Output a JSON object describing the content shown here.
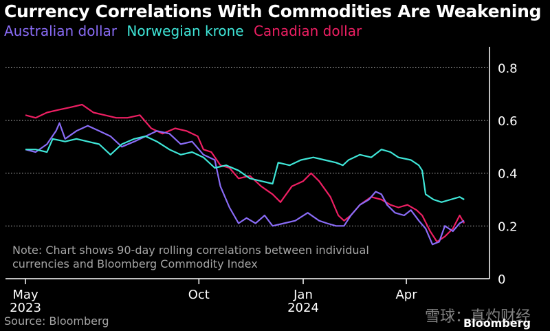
{
  "chart_data": {
    "type": "line",
    "title": "Currency Correlations With Commodities Are Weakening",
    "note": "Note: Chart shows 90-day rolling correlations between individual currencies and Bloomberg Commodity Index",
    "source": "Source: Bloomberg",
    "ylim": [
      0,
      0.9
    ],
    "y_ticks": [
      "0.8",
      "0.6",
      "0.4",
      "0.2",
      "0"
    ],
    "x_tick_labels": [
      {
        "line1": "May",
        "line2": "2023",
        "x": "2023-05-01"
      },
      {
        "line1": "Oct",
        "line2": "",
        "x": "2023-10-01"
      },
      {
        "line1": "Jan",
        "line2": "2024",
        "x": "2024-01-01"
      },
      {
        "line1": "Apr",
        "line2": "",
        "x": "2024-04-01"
      }
    ],
    "grid": "horizontal dotted",
    "legend": "top-left",
    "x_range": [
      "2023-05-01",
      "2024-05-31"
    ],
    "series": [
      {
        "name": "Australian dollar",
        "color": "#8a6cf7",
        "points": [
          [
            "2023-05-01",
            0.49
          ],
          [
            "2023-05-10",
            0.48
          ],
          [
            "2023-05-20",
            0.51
          ],
          [
            "2023-05-28",
            0.56
          ],
          [
            "2023-05-31",
            0.59
          ],
          [
            "2023-06-05",
            0.53
          ],
          [
            "2023-06-15",
            0.56
          ],
          [
            "2023-06-25",
            0.58
          ],
          [
            "2023-07-05",
            0.56
          ],
          [
            "2023-07-15",
            0.54
          ],
          [
            "2023-07-25",
            0.5
          ],
          [
            "2023-08-05",
            0.52
          ],
          [
            "2023-08-15",
            0.54
          ],
          [
            "2023-08-25",
            0.56
          ],
          [
            "2023-09-05",
            0.55
          ],
          [
            "2023-09-15",
            0.51
          ],
          [
            "2023-09-25",
            0.52
          ],
          [
            "2023-10-05",
            0.47
          ],
          [
            "2023-10-15",
            0.45
          ],
          [
            "2023-10-20",
            0.35
          ],
          [
            "2023-10-28",
            0.27
          ],
          [
            "2023-11-05",
            0.21
          ],
          [
            "2023-11-12",
            0.23
          ],
          [
            "2023-11-20",
            0.21
          ],
          [
            "2023-11-28",
            0.24
          ],
          [
            "2023-12-05",
            0.2
          ],
          [
            "2023-12-15",
            0.21
          ],
          [
            "2023-12-25",
            0.22
          ],
          [
            "2024-01-05",
            0.25
          ],
          [
            "2024-01-15",
            0.22
          ],
          [
            "2024-01-22",
            0.21
          ],
          [
            "2024-01-30",
            0.2
          ],
          [
            "2024-02-06",
            0.2
          ],
          [
            "2024-02-12",
            0.24
          ],
          [
            "2024-02-20",
            0.28
          ],
          [
            "2024-02-28",
            0.3
          ],
          [
            "2024-03-05",
            0.33
          ],
          [
            "2024-03-10",
            0.32
          ],
          [
            "2024-03-15",
            0.28
          ],
          [
            "2024-03-22",
            0.25
          ],
          [
            "2024-03-30",
            0.24
          ],
          [
            "2024-04-05",
            0.26
          ],
          [
            "2024-04-12",
            0.22
          ],
          [
            "2024-04-18",
            0.19
          ],
          [
            "2024-04-24",
            0.13
          ],
          [
            "2024-04-30",
            0.14
          ],
          [
            "2024-05-05",
            0.2
          ],
          [
            "2024-05-12",
            0.18
          ],
          [
            "2024-05-18",
            0.21
          ],
          [
            "2024-05-22",
            0.22
          ]
        ]
      },
      {
        "name": "Norwegian krone",
        "color": "#3fe6d8",
        "points": [
          [
            "2023-05-01",
            0.49
          ],
          [
            "2023-05-10",
            0.49
          ],
          [
            "2023-05-20",
            0.48
          ],
          [
            "2023-05-25",
            0.53
          ],
          [
            "2023-06-05",
            0.52
          ],
          [
            "2023-06-15",
            0.53
          ],
          [
            "2023-06-25",
            0.52
          ],
          [
            "2023-07-05",
            0.51
          ],
          [
            "2023-07-15",
            0.47
          ],
          [
            "2023-07-25",
            0.51
          ],
          [
            "2023-08-05",
            0.53
          ],
          [
            "2023-08-15",
            0.54
          ],
          [
            "2023-08-25",
            0.52
          ],
          [
            "2023-09-05",
            0.49
          ],
          [
            "2023-09-15",
            0.47
          ],
          [
            "2023-09-25",
            0.48
          ],
          [
            "2023-10-05",
            0.46
          ],
          [
            "2023-10-15",
            0.42
          ],
          [
            "2023-10-25",
            0.43
          ],
          [
            "2023-11-05",
            0.41
          ],
          [
            "2023-11-15",
            0.38
          ],
          [
            "2023-11-25",
            0.37
          ],
          [
            "2023-12-05",
            0.36
          ],
          [
            "2023-12-10",
            0.44
          ],
          [
            "2023-12-20",
            0.43
          ],
          [
            "2023-12-30",
            0.45
          ],
          [
            "2024-01-10",
            0.46
          ],
          [
            "2024-01-20",
            0.45
          ],
          [
            "2024-01-30",
            0.44
          ],
          [
            "2024-02-05",
            0.43
          ],
          [
            "2024-02-10",
            0.45
          ],
          [
            "2024-02-20",
            0.47
          ],
          [
            "2024-03-01",
            0.46
          ],
          [
            "2024-03-10",
            0.49
          ],
          [
            "2024-03-18",
            0.48
          ],
          [
            "2024-03-25",
            0.46
          ],
          [
            "2024-04-05",
            0.45
          ],
          [
            "2024-04-12",
            0.43
          ],
          [
            "2024-04-15",
            0.41
          ],
          [
            "2024-04-18",
            0.32
          ],
          [
            "2024-04-25",
            0.3
          ],
          [
            "2024-05-02",
            0.29
          ],
          [
            "2024-05-10",
            0.3
          ],
          [
            "2024-05-18",
            0.31
          ],
          [
            "2024-05-22",
            0.3
          ]
        ]
      },
      {
        "name": "Canadian dollar",
        "color": "#ee1f63",
        "points": [
          [
            "2023-05-01",
            0.62
          ],
          [
            "2023-05-10",
            0.61
          ],
          [
            "2023-05-20",
            0.63
          ],
          [
            "2023-05-30",
            0.64
          ],
          [
            "2023-06-10",
            0.65
          ],
          [
            "2023-06-20",
            0.66
          ],
          [
            "2023-06-30",
            0.63
          ],
          [
            "2023-07-10",
            0.62
          ],
          [
            "2023-07-20",
            0.61
          ],
          [
            "2023-07-30",
            0.61
          ],
          [
            "2023-08-10",
            0.62
          ],
          [
            "2023-08-20",
            0.57
          ],
          [
            "2023-08-30",
            0.55
          ],
          [
            "2023-09-10",
            0.57
          ],
          [
            "2023-09-20",
            0.56
          ],
          [
            "2023-09-30",
            0.54
          ],
          [
            "2023-10-05",
            0.49
          ],
          [
            "2023-10-12",
            0.48
          ],
          [
            "2023-10-20",
            0.43
          ],
          [
            "2023-10-28",
            0.42
          ],
          [
            "2023-11-05",
            0.38
          ],
          [
            "2023-11-15",
            0.39
          ],
          [
            "2023-11-25",
            0.35
          ],
          [
            "2023-12-05",
            0.32
          ],
          [
            "2023-12-12",
            0.29
          ],
          [
            "2023-12-22",
            0.35
          ],
          [
            "2024-01-01",
            0.37
          ],
          [
            "2024-01-08",
            0.4
          ],
          [
            "2024-01-15",
            0.37
          ],
          [
            "2024-01-25",
            0.31
          ],
          [
            "2024-02-01",
            0.24
          ],
          [
            "2024-02-06",
            0.22
          ],
          [
            "2024-02-12",
            0.24
          ],
          [
            "2024-02-20",
            0.28
          ],
          [
            "2024-03-01",
            0.31
          ],
          [
            "2024-03-10",
            0.3
          ],
          [
            "2024-03-18",
            0.28
          ],
          [
            "2024-03-25",
            0.27
          ],
          [
            "2024-04-02",
            0.28
          ],
          [
            "2024-04-10",
            0.26
          ],
          [
            "2024-04-15",
            0.24
          ],
          [
            "2024-04-22",
            0.18
          ],
          [
            "2024-04-28",
            0.14
          ],
          [
            "2024-05-05",
            0.16
          ],
          [
            "2024-05-12",
            0.19
          ],
          [
            "2024-05-18",
            0.24
          ],
          [
            "2024-05-22",
            0.21
          ]
        ]
      }
    ]
  },
  "watermark": "雪球：真灼财经",
  "brand": "Bloomberg"
}
